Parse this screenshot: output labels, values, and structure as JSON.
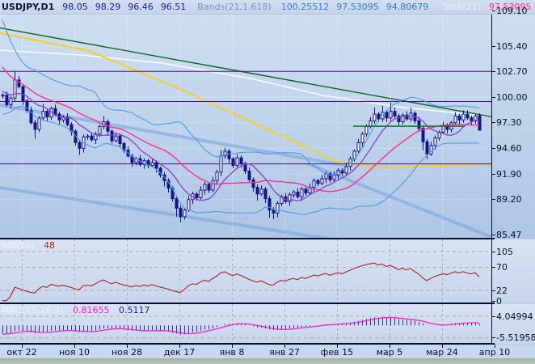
{
  "window_title": "USDJPY Daily chart with Bollinger Bands, SMA, RSI and MACD",
  "accent_colors": {
    "candle_bear": "#141489",
    "candle_bull_fill": "#ffffff",
    "bands_line": "#4f9ce8",
    "sma21_line": "#ff2d8d",
    "sma9_line": "#8a3fd1",
    "white_ma": "#fafafa",
    "yellow_ma": "#f5d123",
    "green_trend": "#0a661a",
    "thick_channel": "#7aa7e0",
    "purple_hline": "#4b0a8c",
    "rsi_line": "#a83232",
    "macd_hist": "#2f2fa0",
    "macd_signal": "#f321c9"
  },
  "infobar": {
    "segments": [
      {
        "t": "USDJPY,D1",
        "c": "#0a1238",
        "bold": true,
        "gap": 10
      },
      {
        "t": "98.05",
        "c": "#1a1aa6",
        "gap": 9
      },
      {
        "t": "98.29",
        "c": "#1a1aa6",
        "gap": 9
      },
      {
        "t": "96.46",
        "c": "#1a1aa6",
        "gap": 9
      },
      {
        "t": "96.51",
        "c": "#1a1aa6",
        "gap": 14
      },
      {
        "t": "Bands(21,1.618)",
        "c": "#7193c4",
        "gap": 12
      },
      {
        "t": "100.25512",
        "c": "#2e7de0",
        "gap": 9
      },
      {
        "t": "97.53095",
        "c": "#2e7de0",
        "gap": 9
      },
      {
        "t": "94.80679",
        "c": "#2e7de0",
        "gap": 18
      },
      {
        "t": "SMA(21)",
        "c": "#e9eef6",
        "gap": 10
      },
      {
        "t": "97.53095",
        "c": "#ff2d8d",
        "gap": 12
      },
      {
        "t": "SMA(9)",
        "c": "#e9eef6",
        "gap": 8
      },
      {
        "t": "97.34667",
        "c": "#7d2ee8",
        "gap": 12
      },
      {
        "t": "SMA",
        "c": "#e9eef6",
        "gap": 0
      }
    ]
  },
  "panels": {
    "rsi": {
      "label": "RSI(14)",
      "value": "48",
      "value_color": "#b22222",
      "axis_labels": [
        [
          "105",
          311
        ],
        [
          "70",
          330.5
        ],
        [
          "22",
          359
        ],
        [
          "0",
          372
        ]
      ],
      "dashed_levels_y": [
        311,
        330.5,
        359
      ]
    },
    "macd": {
      "label": "MACD(5,26,5)",
      "value_main": "0.81655",
      "value_main_color": "#f321c9",
      "value_signal": "0.5117",
      "value_signal_color": "#1a1aa6",
      "axis_labels": [
        [
          "4.04994",
          391
        ],
        [
          "-5.51958",
          417.5
        ]
      ],
      "dashed_levels_y": [
        391,
        417.5
      ]
    }
  },
  "chart_data": {
    "type": "candlestick",
    "symbol_period": "USDJPY,D1",
    "last_candle": {
      "open": 98.05,
      "high": 98.29,
      "low": 96.46,
      "close": 96.51
    },
    "price_axis_labels": [
      [
        "109.10",
        13
      ],
      [
        "105.40",
        57
      ],
      [
        "102.70",
        88.5
      ],
      [
        "100.00",
        120
      ],
      [
        "97.30",
        151.7
      ],
      [
        "94.60",
        183.4
      ],
      [
        "91.90",
        215
      ],
      [
        "89.20",
        246.7
      ],
      [
        "85.47",
        290.5
      ]
    ],
    "x_labels": [
      [
        "окт 22",
        27
      ],
      [
        "ноя 10",
        92
      ],
      [
        "ноя 28",
        157
      ],
      [
        "дек 17",
        222
      ],
      [
        "янв 8",
        287
      ],
      [
        "янв 27",
        352
      ],
      [
        "фев 15",
        417
      ],
      [
        "мар 5",
        482
      ],
      [
        "мар 24",
        547
      ],
      [
        "апр 10",
        612
      ]
    ],
    "pre_closes": [
      112.0,
      110.6,
      109.2,
      107.8,
      106.6,
      105.6,
      104.7,
      104.0,
      103.4,
      102.9,
      102.4,
      102.0,
      101.7,
      101.4,
      101.1,
      100.9,
      100.7,
      100.5,
      100.35,
      100.25,
      100.15
    ],
    "closes": [
      100.2,
      99.2,
      99.9,
      101.8,
      101.1,
      99.6,
      98.6,
      97.3,
      96.6,
      97.8,
      98.5,
      97.9,
      98.8,
      98.2,
      97.6,
      97.9,
      97.1,
      96.4,
      95.2,
      94.6,
      95.8,
      95.9,
      95.5,
      96.1,
      96.9,
      97.4,
      96.4,
      95.4,
      95.9,
      95.1,
      94.4,
      93.8,
      93.1,
      93.5,
      92.9,
      93.3,
      92.8,
      93.1,
      92.5,
      91.8,
      91.2,
      90.4,
      89.3,
      88.3,
      87.4,
      88.1,
      89.2,
      89.8,
      89.4,
      90.2,
      90.8,
      90.2,
      91.2,
      92.1,
      93.8,
      94.3,
      93.5,
      92.8,
      93.6,
      93.0,
      92.2,
      91.3,
      90.5,
      89.8,
      90.3,
      89.3,
      88.1,
      87.8,
      88.8,
      89.5,
      89.0,
      89.7,
      90.0,
      89.5,
      90.3,
      89.9,
      90.5,
      91.2,
      90.9,
      91.4,
      91.9,
      91.3,
      91.8,
      92.3,
      92.0,
      92.7,
      93.5,
      94.3,
      95.2,
      96.1,
      96.9,
      97.5,
      98.2,
      97.7,
      98.4,
      97.8,
      98.5,
      98.0,
      97.4,
      98.1,
      97.7,
      98.3,
      97.5,
      96.7,
      95.3,
      94.0,
      94.9,
      95.7,
      96.3,
      97.0,
      96.6,
      97.3,
      98.0,
      97.6,
      98.2,
      97.8,
      97.5,
      98.0,
      96.51
    ],
    "wick_pattern": [
      [
        0.2,
        0.3
      ],
      [
        0.4,
        0.2
      ],
      [
        0.25,
        0.45
      ]
    ],
    "wick_overrides": {
      "3": [
        0.95,
        0.3
      ],
      "8": [
        0.3,
        1.0
      ],
      "10": [
        0.8,
        0.3
      ],
      "19": [
        0.3,
        0.7
      ],
      "25": [
        0.6,
        0.3
      ],
      "40": [
        0.3,
        0.6
      ],
      "43": [
        0.3,
        0.9
      ],
      "44": [
        0.3,
        0.6
      ],
      "54": [
        0.6,
        0.4
      ],
      "55": [
        0.35,
        0.3
      ],
      "63": [
        0.3,
        0.7
      ],
      "66": [
        0.3,
        0.8
      ],
      "67": [
        0.3,
        0.65
      ],
      "92": [
        0.7,
        0.3
      ],
      "94": [
        0.7,
        0.3
      ],
      "96": [
        0.9,
        0.3
      ],
      "101": [
        0.6,
        0.3
      ],
      "104": [
        0.3,
        0.9
      ],
      "105": [
        0.3,
        0.55
      ],
      "114": [
        0.4,
        0.3
      ],
      "118": [
        0.24,
        0.05
      ]
    },
    "indicators": {
      "bands": {
        "period": 21,
        "deviation": 1.618
      },
      "sma_fast": 9,
      "sma_slow": 21,
      "rsi_period": 14,
      "macd": [
        5,
        26,
        5
      ]
    },
    "overlays": {
      "white_ma_pts": [
        [
          0,
          104.94
        ],
        [
          100,
          104.43
        ],
        [
          200,
          103.58
        ],
        [
          310,
          101.96
        ],
        [
          400,
          100.17
        ],
        [
          500,
          98.89
        ],
        [
          608,
          97.95
        ]
      ],
      "yellow_ma_pts": [
        [
          0,
          106.73
        ],
        [
          110,
          104.86
        ],
        [
          220,
          100.94
        ],
        [
          310,
          97.44
        ],
        [
          420,
          93.1
        ],
        [
          470,
          92.59
        ],
        [
          530,
          92.76
        ],
        [
          608,
          92.93
        ]
      ],
      "green_trendline": [
        [
          0,
          107.28
        ],
        [
          662,
          97.1
        ]
      ],
      "thick_lines": [
        [
          [
            0,
            99.15
          ],
          [
            430,
            92.76
          ]
        ],
        [
          [
            0,
            90.46
          ],
          [
            437,
            84.67
          ]
        ],
        [
          [
            380,
            93.02
          ],
          [
            608,
            85.27
          ]
        ]
      ],
      "green_segment": [
        [
          437,
          96.93
        ],
        [
          575,
          96.93
        ]
      ],
      "purple_hlines": [
        102.7,
        99.53,
        92.96
      ]
    }
  }
}
